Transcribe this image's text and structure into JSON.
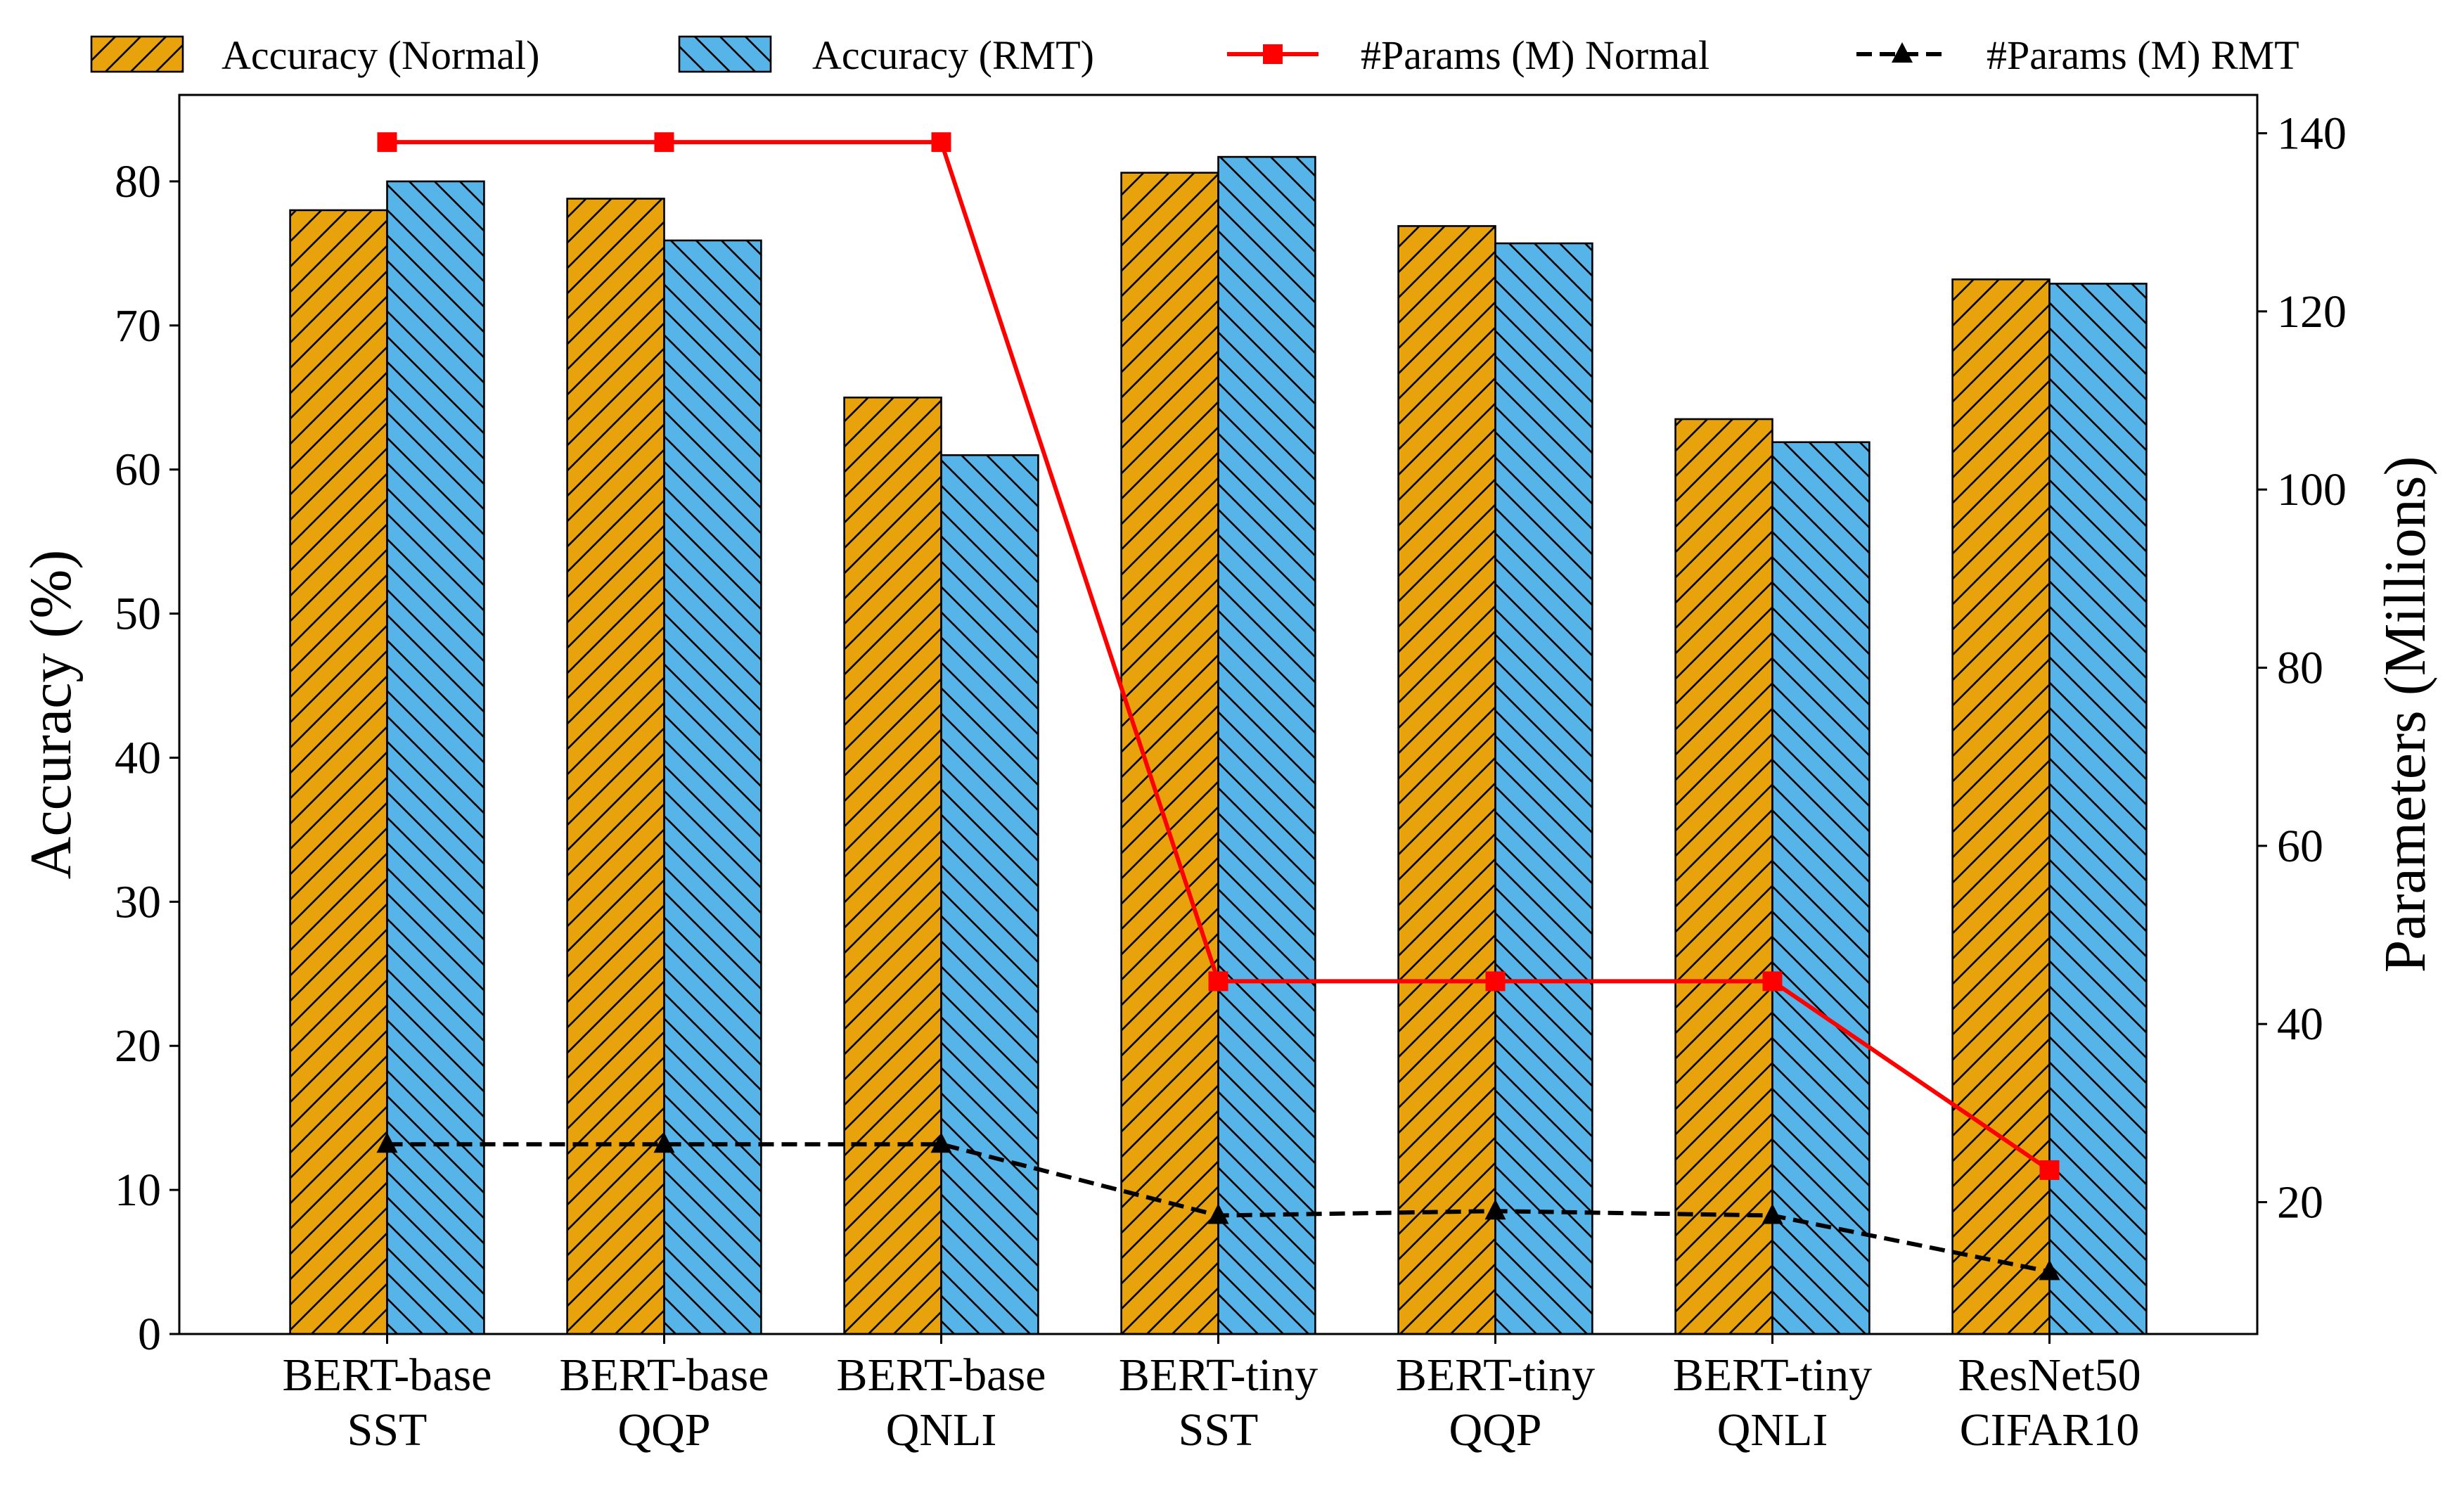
{
  "chart_data": {
    "type": "bar",
    "title": "",
    "categories": [
      [
        "BERT-base",
        "SST"
      ],
      [
        "BERT-base",
        "QQP"
      ],
      [
        "BERT-base",
        "QNLI"
      ],
      [
        "BERT-tiny",
        "SST"
      ],
      [
        "BERT-tiny",
        "QQP"
      ],
      [
        "BERT-tiny",
        "QNLI"
      ],
      [
        "ResNet50",
        "CIFAR10"
      ]
    ],
    "xlabel": "",
    "ylabel": "Accuracy (%)",
    "ylabel_right": "Parameters (Millions)",
    "ylim": [
      0,
      86
    ],
    "ylim_right": [
      5.2,
      144.3
    ],
    "yticks": [
      0,
      10,
      20,
      30,
      40,
      50,
      60,
      70,
      80
    ],
    "yticks_right": [
      20,
      40,
      60,
      80,
      100,
      120,
      140
    ],
    "grid": false,
    "legend_position": "top",
    "series": [
      {
        "name": "Accuracy (Normal)",
        "kind": "bar",
        "axis": "left",
        "color": "#e8a20c",
        "hatch": "forward",
        "values": [
          78,
          78.8,
          65,
          80.6,
          76.9,
          63.5,
          73.2
        ]
      },
      {
        "name": "Accuracy (RMT)",
        "kind": "bar",
        "axis": "left",
        "color": "#56b4e9",
        "hatch": "back",
        "values": [
          80,
          75.9,
          61,
          81.7,
          75.7,
          61.9,
          72.9
        ]
      },
      {
        "name": "#Params (M) Normal",
        "kind": "line",
        "axis": "right",
        "color": "#ff0000",
        "marker": "square",
        "linestyle": "solid",
        "values": [
          139,
          139,
          139,
          44.8,
          44.8,
          44.8,
          23.6
        ]
      },
      {
        "name": "#Params (M) RMT",
        "kind": "line",
        "axis": "right",
        "color": "#000000",
        "marker": "triangle",
        "linestyle": "dashed",
        "values": [
          26.5,
          26.5,
          26.5,
          18.5,
          19,
          18.5,
          12.2
        ]
      }
    ]
  }
}
